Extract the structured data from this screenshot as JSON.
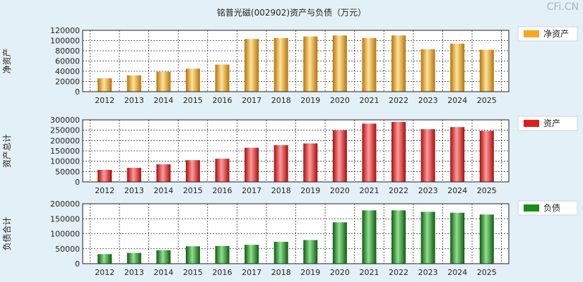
{
  "title": "铭普光磁(002902)资产与负债（万元）",
  "watermark": "CFi.CN",
  "chart_data": [
    {
      "type": "bar",
      "ylabel": "净资产",
      "legend": "净资产",
      "legend_placement": "top-right",
      "color": "#f5a623",
      "grid": true,
      "categories": [
        "2012",
        "2013",
        "2014",
        "2015",
        "2016",
        "2017",
        "2018",
        "2019",
        "2020",
        "2021",
        "2022",
        "2023",
        "2024",
        "2025"
      ],
      "values": [
        26000,
        32000,
        39000,
        45000,
        53000,
        103000,
        105000,
        108000,
        110000,
        105000,
        110000,
        83000,
        94000,
        82000
      ],
      "ylim": [
        0,
        120000
      ],
      "yticks": [
        0,
        20000,
        40000,
        60000,
        80000,
        100000,
        120000
      ]
    },
    {
      "type": "bar",
      "ylabel": "资产总计",
      "legend": "资产",
      "legend_placement": "top-right",
      "color": "#e21b1b",
      "grid": true,
      "categories": [
        "2012",
        "2013",
        "2014",
        "2015",
        "2016",
        "2017",
        "2018",
        "2019",
        "2020",
        "2021",
        "2022",
        "2023",
        "2024",
        "2025"
      ],
      "values": [
        58000,
        68000,
        85000,
        105000,
        112000,
        165000,
        178000,
        186000,
        250000,
        282000,
        290000,
        255000,
        265000,
        247000
      ],
      "ylim": [
        0,
        300000
      ],
      "yticks": [
        0,
        50000,
        100000,
        150000,
        200000,
        250000,
        300000
      ]
    },
    {
      "type": "bar",
      "ylabel": "负债合计",
      "legend": "负债",
      "legend_placement": "top-right",
      "color": "#1a8a1a",
      "grid": true,
      "categories": [
        "2012",
        "2013",
        "2014",
        "2015",
        "2016",
        "2017",
        "2018",
        "2019",
        "2020",
        "2021",
        "2022",
        "2023",
        "2024",
        "2025"
      ],
      "values": [
        32000,
        36000,
        45000,
        58000,
        59000,
        63000,
        73000,
        79000,
        138000,
        178000,
        178000,
        173000,
        170000,
        164000
      ],
      "ylim": [
        0,
        200000
      ],
      "yticks": [
        0,
        50000,
        100000,
        150000,
        200000
      ]
    }
  ]
}
